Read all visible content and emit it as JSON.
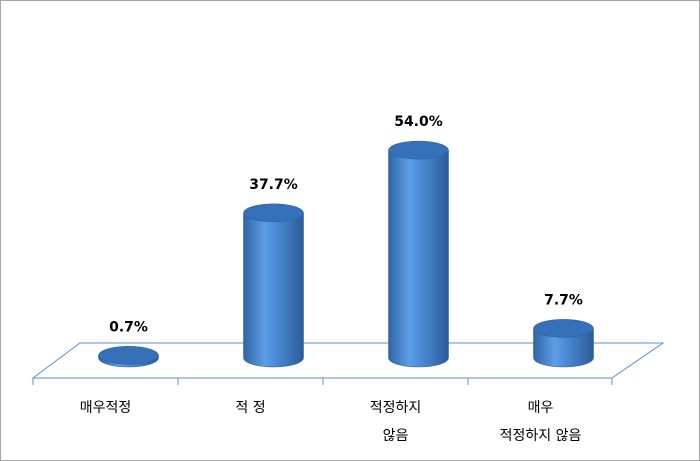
{
  "chart_data": {
    "type": "cylinder",
    "categories": [
      [
        "매우적정"
      ],
      [
        "적 정"
      ],
      [
        "적정하지",
        "않음"
      ],
      [
        "매우",
        "적정하지 않음"
      ]
    ],
    "values": [
      0.7,
      37.7,
      54.0,
      7.7
    ],
    "value_labels": [
      "0.7%",
      "37.7%",
      "54.0%",
      "7.7%"
    ],
    "color": "#4a8ad4"
  }
}
